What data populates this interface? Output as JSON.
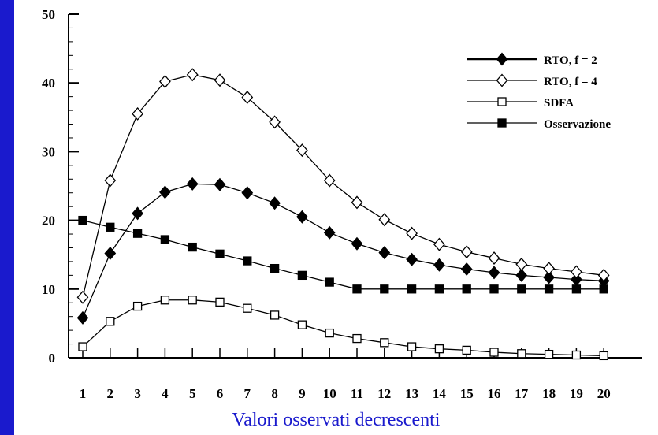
{
  "chart_data": {
    "type": "line",
    "x": [
      1,
      2,
      3,
      4,
      5,
      6,
      7,
      8,
      9,
      10,
      11,
      12,
      13,
      14,
      15,
      16,
      17,
      18,
      19,
      20
    ],
    "xticks": [
      "1",
      "2",
      "3",
      "4",
      "5",
      "6",
      "7",
      "8",
      "9",
      "10",
      "11",
      "12",
      "13",
      "14",
      "15",
      "16",
      "17",
      "18",
      "19",
      "20"
    ],
    "yticks": [
      "0",
      "10",
      "20",
      "30",
      "40",
      "50"
    ],
    "ylim": [
      0,
      50
    ],
    "xlabel": "Valori osservati decrescenti",
    "ylabel": "",
    "legend_position": "top-right",
    "grid": false,
    "series": [
      {
        "name": "RTO, f = 2",
        "marker": "diamond-filled",
        "values": [
          5.8,
          15.2,
          21.0,
          24.1,
          25.3,
          25.2,
          24.0,
          22.5,
          20.5,
          18.2,
          16.6,
          15.3,
          14.3,
          13.5,
          12.9,
          12.4,
          12.0,
          11.7,
          11.4,
          11.2
        ]
      },
      {
        "name": "RTO, f = 4",
        "marker": "diamond-open",
        "values": [
          8.8,
          25.8,
          35.5,
          40.2,
          41.2,
          40.4,
          37.9,
          34.3,
          30.2,
          25.8,
          22.6,
          20.1,
          18.1,
          16.5,
          15.4,
          14.5,
          13.6,
          13.0,
          12.5,
          12.0
        ]
      },
      {
        "name": "SDFA",
        "marker": "square-open",
        "values": [
          1.6,
          5.3,
          7.5,
          8.4,
          8.4,
          8.1,
          7.2,
          6.2,
          4.8,
          3.6,
          2.8,
          2.2,
          1.6,
          1.3,
          1.1,
          0.8,
          0.6,
          0.5,
          0.4,
          0.3
        ]
      },
      {
        "name": "Osservazione",
        "marker": "square-filled",
        "values": [
          20.0,
          19.0,
          18.1,
          17.2,
          16.1,
          15.1,
          14.1,
          13.0,
          12.0,
          11.0,
          10.0,
          10.0,
          10.0,
          10.0,
          10.0,
          10.0,
          10.0,
          10.0,
          10.0,
          10.0
        ]
      }
    ]
  },
  "colors": {
    "background": "#1a1acd",
    "panel": "#ffffff",
    "ink": "#000000",
    "xlabel": "#1a1acd"
  }
}
